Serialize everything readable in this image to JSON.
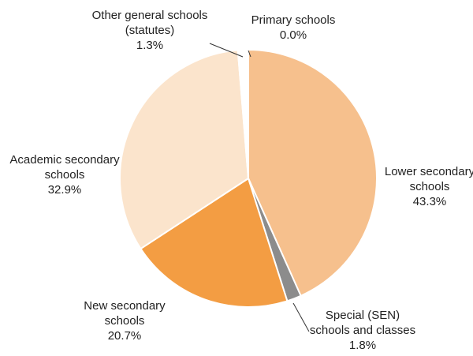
{
  "chart_data": {
    "type": "pie",
    "title": "",
    "slices": [
      {
        "label": [
          "Primary schools"
        ],
        "value_label": "0.0%",
        "value": 0.0,
        "color": "#f6c08d"
      },
      {
        "label": [
          "Lower secondary",
          "schools"
        ],
        "value_label": "43.3%",
        "value": 43.3,
        "color": "#f6c08d"
      },
      {
        "label": [
          "Special (SEN)",
          "schools and classes"
        ],
        "value_label": "1.8%",
        "value": 1.8,
        "color": "#8c8c8c"
      },
      {
        "label": [
          "New secondary",
          "schools"
        ],
        "value_label": "20.7%",
        "value": 20.7,
        "color": "#f39d43"
      },
      {
        "label": [
          "Academic secondary",
          "schools"
        ],
        "value_label": "32.9%",
        "value": 32.9,
        "color": "#fbe4cc"
      },
      {
        "label": [
          "Other general schools",
          "(statutes)"
        ],
        "value_label": "1.3%",
        "value": 1.3,
        "color": "#ffffff"
      }
    ],
    "start_angle_deg": 0,
    "direction": "clockwise",
    "slice_border_color": "#ffffff"
  }
}
